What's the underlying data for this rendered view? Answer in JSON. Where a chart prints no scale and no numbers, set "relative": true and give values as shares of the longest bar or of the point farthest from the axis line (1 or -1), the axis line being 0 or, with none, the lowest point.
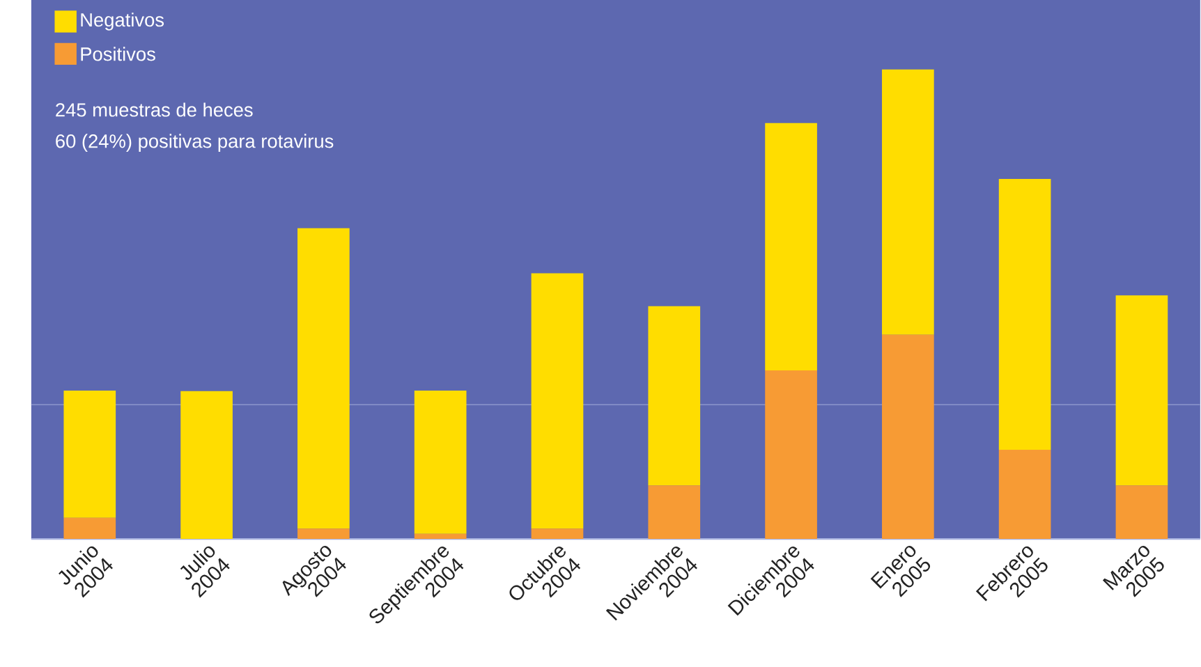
{
  "chart_data": {
    "type": "bar",
    "stacked": true,
    "relative": true,
    "categories": [
      "Junio 2004",
      "Julio 2004",
      "Agosto 2004",
      "Septiembre 2004",
      "Octubre 2004",
      "Noviembre 2004",
      "Diciembre 2004",
      "Enero 2005",
      "Febrero 2005",
      "Marzo 2005"
    ],
    "series": [
      {
        "name": "Positivos",
        "color": "#f79b34",
        "values": [
          0.045,
          0,
          0.022,
          0.011,
          0.022,
          0.114,
          0.359,
          0.435,
          0.19,
          0.114
        ]
      },
      {
        "name": "Negativos",
        "color": "#ffdd00",
        "values": [
          0.271,
          0.315,
          0.64,
          0.305,
          0.544,
          0.382,
          0.527,
          0.565,
          0.577,
          0.405
        ]
      }
    ],
    "legend": "top left",
    "annotations": [
      "245 muestras de heces",
      "60 (24%) positivas para rotavirus"
    ],
    "ref_lines": [
      {
        "axis": "y",
        "value": 0.286,
        "color": "#8c96cc"
      }
    ]
  }
}
